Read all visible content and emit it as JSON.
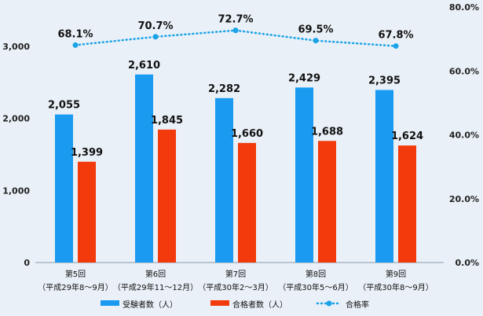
{
  "chart_data": {
    "type": "bar",
    "categories": [
      {
        "line1": "第5回",
        "line2": "（平成29年8～9月）"
      },
      {
        "line1": "第6回",
        "line2": "（平成29年11～12月）"
      },
      {
        "line1": "第7回",
        "line2": "（平成30年2～3月）"
      },
      {
        "line1": "第8回",
        "line2": "（平成30年5～6月）"
      },
      {
        "line1": "第9回",
        "line2": "（平成30年8～9月）"
      }
    ],
    "series": [
      {
        "name": "受験者数（人）",
        "type": "bar",
        "axis": "left",
        "color": "#1a9af0",
        "values": [
          2055,
          2610,
          2282,
          2429,
          2395
        ],
        "labels": [
          "2,055",
          "2,610",
          "2,282",
          "2,429",
          "2,395"
        ]
      },
      {
        "name": "合格者数（人）",
        "type": "bar",
        "axis": "left",
        "color": "#f23a0c",
        "values": [
          1399,
          1845,
          1660,
          1688,
          1624
        ],
        "labels": [
          "1,399",
          "1,845",
          "1,660",
          "1,688",
          "1,624"
        ]
      },
      {
        "name": "合格率",
        "type": "line",
        "style": "dotted-with-markers",
        "axis": "right",
        "color": "#1aa3e8",
        "values": [
          68.1,
          70.7,
          72.7,
          69.5,
          67.8
        ],
        "labels": [
          "68.1%",
          "70.7%",
          "72.7%",
          "69.5%",
          "67.8%"
        ]
      }
    ],
    "y_left": {
      "min": 0,
      "max": 3000,
      "ticks": [
        "0",
        "1,000",
        "2,000",
        "3,000"
      ],
      "tick_values": [
        0,
        1000,
        2000,
        3000
      ]
    },
    "y_right": {
      "min": 0,
      "max": 80,
      "ticks": [
        "0.0%",
        "20.0%",
        "40.0%",
        "60.0%",
        "80.0%"
      ],
      "tick_values": [
        0,
        20,
        40,
        60,
        80
      ]
    },
    "grid": false,
    "legend_position": "bottom"
  }
}
